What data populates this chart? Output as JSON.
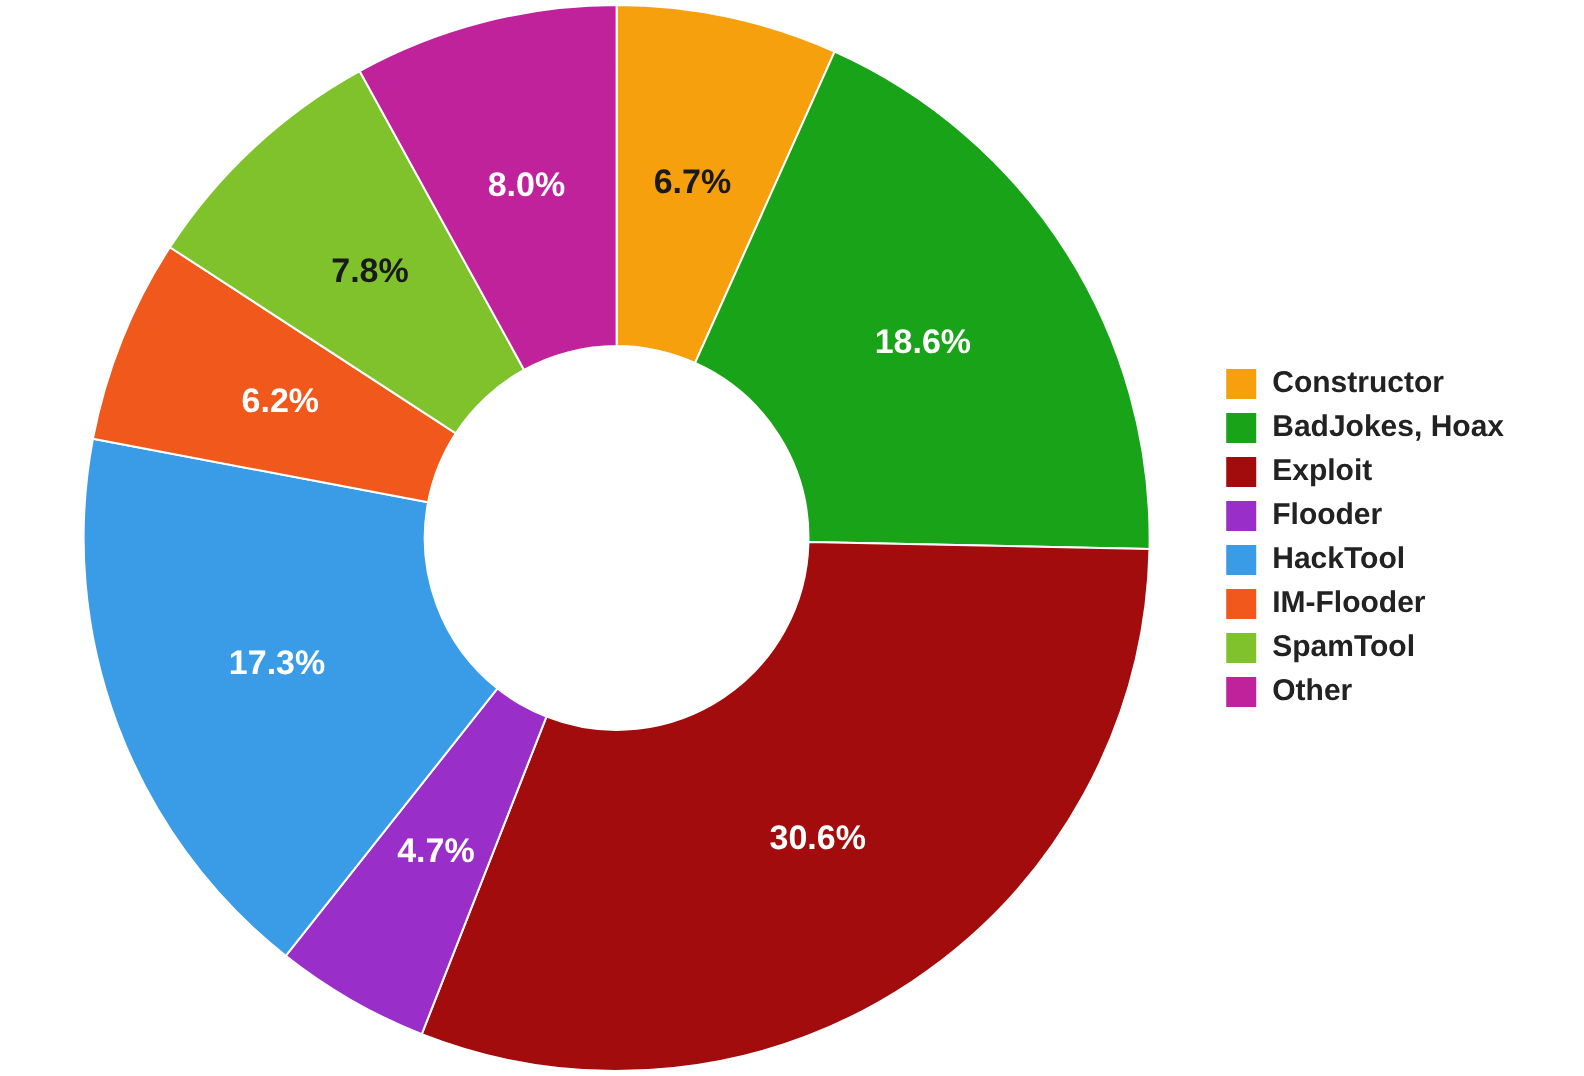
{
  "chart_data": {
    "type": "donut",
    "categories": [
      "Constructor",
      "BadJokes, Hoax",
      "Exploit",
      "Flooder",
      "HackTool",
      "IM-Flooder",
      "SpamTool",
      "Other"
    ],
    "values": [
      6.7,
      18.6,
      30.6,
      4.7,
      17.3,
      6.2,
      7.8,
      8.0
    ],
    "value_labels": [
      "6.7%",
      "18.6%",
      "30.6%",
      "4.7%",
      "17.3%",
      "6.2%",
      "7.8%",
      "8.0%"
    ],
    "colors": [
      "#f5a00c",
      "#18a318",
      "#a30c0c",
      "#9a2ec8",
      "#3a9ce6",
      "#f0581c",
      "#80c22c",
      "#c0229c"
    ],
    "legend": "right"
  }
}
